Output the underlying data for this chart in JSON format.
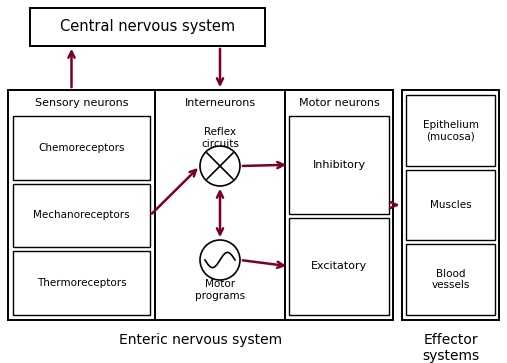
{
  "bg_color": "#ffffff",
  "box_color": "#ffffff",
  "border_color": "#000000",
  "arrow_color": "#7b0020",
  "text_color": "#000000",
  "title": "Central nervous system",
  "label_ens": "Enteric nervous system",
  "label_eff": "Effector\nsystems",
  "sensory_title": "Sensory neurons",
  "inter_title": "Interneurons",
  "motor_title": "Motor neurons",
  "sensory_items": [
    "Chemoreceptors",
    "Mechanoreceptors",
    "Thermoreceptors"
  ],
  "inter_items": [
    "Reflex\ncircuits",
    "Motor\nprograms"
  ],
  "motor_items": [
    "Inhibitory",
    "Excitatory"
  ],
  "effector_items": [
    "Epithelium\n(mucosa)",
    "Muscles",
    "Blood\nvessels"
  ],
  "figsize": [
    5.07,
    3.63
  ],
  "dpi": 100
}
